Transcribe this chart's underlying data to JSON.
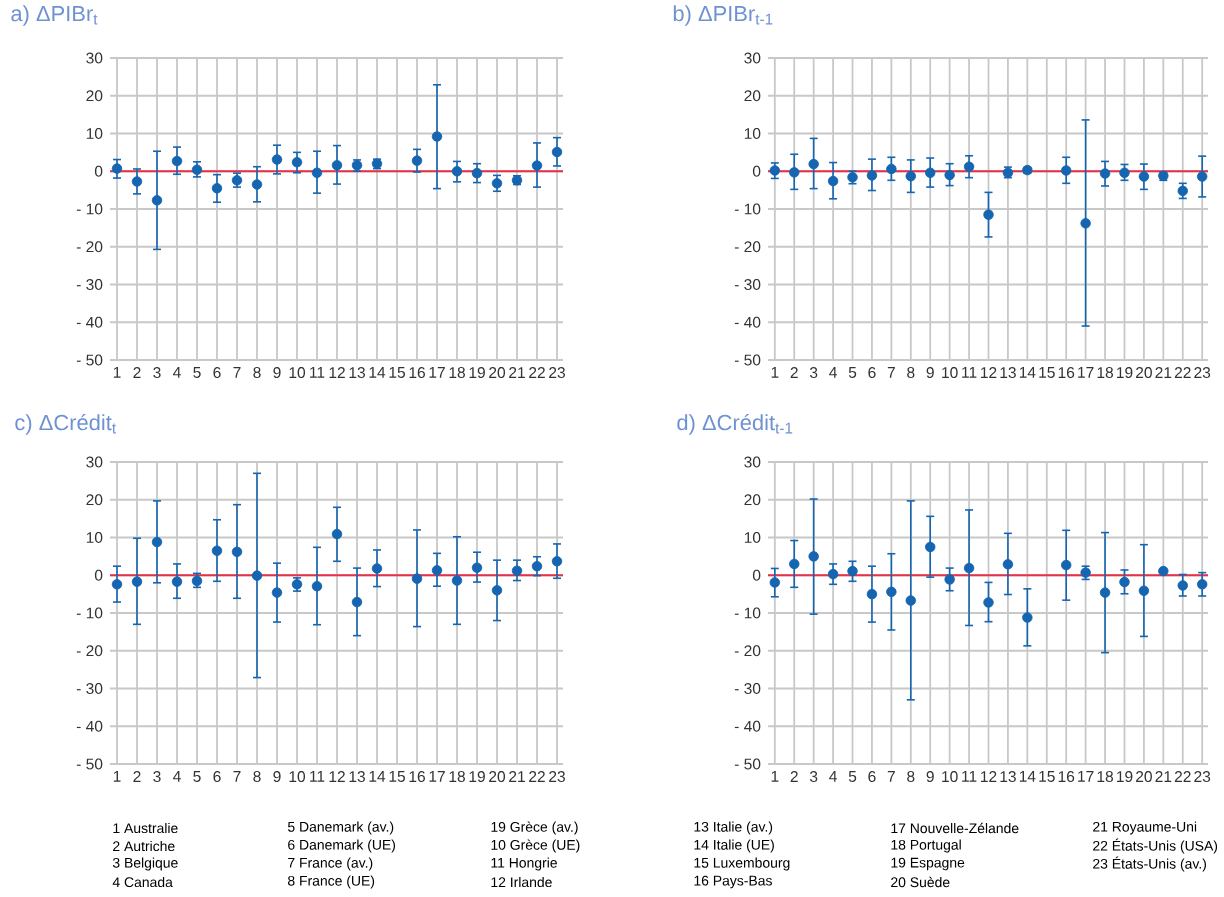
{
  "chart_data": [
    {
      "type": "scatter",
      "title": "a) ΔPIBr$_{t}$",
      "categories": [
        "1",
        "2",
        "3",
        "4",
        "5",
        "6",
        "7",
        "8",
        "9",
        "10",
        "11",
        "12",
        "13",
        "14",
        "15",
        "16",
        "17",
        "18",
        "19",
        "20",
        "21",
        "22",
        "23"
      ],
      "values": [
        0.7,
        -2.7,
        -7.7,
        2.7,
        0.4,
        -4.5,
        -2.4,
        -3.5,
        3.1,
        2.4,
        -0.4,
        1.6,
        1.6,
        2,
        null,
        2.8,
        9.2,
        0,
        -0.5,
        -3.2,
        -2.4,
        1.5,
        5.1
      ],
      "errors": [
        [
          -1.8,
          3.1
        ],
        [
          -6,
          0.6
        ],
        [
          -20.7,
          5.3
        ],
        [
          -0.8,
          6.4
        ],
        [
          -1.5,
          2.5
        ],
        [
          -8.2,
          -0.9
        ],
        [
          -4.2,
          -0.5
        ],
        [
          -8.1,
          1.2
        ],
        [
          -0.7,
          6.9
        ],
        [
          -0.4,
          5
        ],
        [
          -5.8,
          5.3
        ],
        [
          -3.4,
          6.8
        ],
        [
          0,
          3
        ],
        [
          0.7,
          3.2
        ],
        null,
        [
          -0.2,
          5.8
        ],
        [
          -4.6,
          22.9
        ],
        [
          -2.8,
          2.6
        ],
        [
          -3,
          2
        ],
        [
          -5.3,
          -1.1
        ],
        [
          -3.5,
          -1.2
        ],
        [
          -4.2,
          7.5
        ],
        [
          1.4,
          8.9
        ]
      ],
      "color": "#1565b0",
      "marker": "circle",
      "grid": true,
      "ylim": [
        -50,
        30
      ],
      "yticks": [
        {
          "value": -50,
          "label": "- 50"
        },
        {
          "value": -40,
          "label": "- 40"
        },
        {
          "value": -30,
          "label": "- 30"
        },
        {
          "value": -20,
          "label": "- 20"
        },
        {
          "value": -10,
          "label": "- 10"
        },
        0,
        10,
        20,
        30
      ],
      "ref_lines": [
        {
          "axis": "y",
          "value": 0,
          "color": "#e8304a"
        }
      ]
    },
    {
      "type": "scatter",
      "title": "b) ΔPIBr$_{t-1}$",
      "categories": [
        "1",
        "2",
        "3",
        "4",
        "5",
        "6",
        "7",
        "8",
        "9",
        "10",
        "11",
        "12",
        "13",
        "14",
        "15",
        "16",
        "17",
        "18",
        "19",
        "20",
        "21",
        "22",
        "23"
      ],
      "values": [
        0.2,
        -0.3,
        1.9,
        -2.6,
        -1.6,
        -1.1,
        0.6,
        -1.3,
        -0.4,
        -1,
        1.2,
        -11.5,
        -0.4,
        0.3,
        null,
        0.2,
        -13.8,
        -0.6,
        -0.4,
        -1.4,
        -1.2,
        -5.2,
        -1.4
      ],
      "errors": [
        [
          -1.9,
          2.2
        ],
        [
          -4.8,
          4.5
        ],
        [
          -4.6,
          8.7
        ],
        [
          -7.3,
          2.3
        ],
        [
          -3.3,
          0
        ],
        [
          -5.1,
          3.2
        ],
        [
          -2.4,
          3.7
        ],
        [
          -5.6,
          3
        ],
        [
          -4.2,
          3.5
        ],
        [
          -3.8,
          2
        ],
        [
          -1.7,
          4.1
        ],
        [
          -17.4,
          -5.6
        ],
        [
          -1.7,
          1.1
        ],
        [
          -0.5,
          1
        ],
        null,
        [
          -3.2,
          3.7
        ],
        [
          -41,
          13.6
        ],
        [
          -3.9,
          2.6
        ],
        [
          -2.4,
          1.8
        ],
        [
          -4.8,
          1.9
        ],
        [
          -2.4,
          -0.4
        ],
        [
          -7.2,
          -3.2
        ],
        [
          -6.8,
          4
        ]
      ],
      "color": "#1565b0",
      "marker": "circle",
      "grid": true,
      "ylim": [
        -50,
        30
      ],
      "yticks": [
        {
          "value": -50,
          "label": "- 50"
        },
        {
          "value": -40,
          "label": "- 40"
        },
        {
          "value": -30,
          "label": "- 30"
        },
        {
          "value": -20,
          "label": "- 20"
        },
        {
          "value": -10,
          "label": "- 10"
        },
        0,
        10,
        20,
        30
      ],
      "ref_lines": [
        {
          "axis": "y",
          "value": 0,
          "color": "#e8304a"
        }
      ]
    },
    {
      "type": "scatter",
      "title": "c) ΔCrédit$_{t}$",
      "categories": [
        "1",
        "2",
        "3",
        "4",
        "5",
        "6",
        "7",
        "8",
        "9",
        "10",
        "11",
        "12",
        "13",
        "14",
        "15",
        "16",
        "17",
        "18",
        "19",
        "20",
        "21",
        "22",
        "23"
      ],
      "values": [
        -2.4,
        -1.7,
        8.8,
        -1.7,
        -1.5,
        6.5,
        6.2,
        -0.1,
        -4.6,
        -2.4,
        -2.9,
        10.9,
        -7.1,
        1.8,
        null,
        -0.9,
        1.3,
        -1.4,
        2,
        -4,
        1.2,
        2.4,
        3.7
      ],
      "errors": [
        [
          -7.1,
          2.4
        ],
        [
          -13,
          9.8
        ],
        [
          -2,
          19.7
        ],
        [
          -6.1,
          3
        ],
        [
          -3.2,
          0.5
        ],
        [
          -1.6,
          14.7
        ],
        [
          -6.1,
          18.7
        ],
        [
          -27.1,
          27
        ],
        [
          -12.4,
          3.2
        ],
        [
          -4.2,
          -0.7
        ],
        [
          -13.1,
          7.4
        ],
        [
          3.7,
          18
        ],
        [
          -16,
          1.9
        ],
        [
          -3,
          6.7
        ],
        null,
        [
          -13.6,
          12
        ],
        [
          -2.9,
          5.8
        ],
        [
          -13,
          10.2
        ],
        [
          -1.8,
          6.1
        ],
        [
          -12,
          4
        ],
        [
          -1.4,
          4
        ],
        [
          -0.1,
          4.9
        ],
        [
          -0.8,
          8.3
        ]
      ],
      "color": "#1565b0",
      "marker": "circle",
      "grid": true,
      "ylim": [
        -50,
        30
      ],
      "yticks": [
        {
          "value": -50,
          "label": "- 50"
        },
        {
          "value": -40,
          "label": "- 40"
        },
        {
          "value": -30,
          "label": "- 30"
        },
        {
          "value": -20,
          "label": "- 20"
        },
        {
          "value": -10,
          "label": "- 10"
        },
        0,
        10,
        20,
        30
      ],
      "ref_lines": [
        {
          "axis": "y",
          "value": 0,
          "color": "#e8304a"
        }
      ],
      "annotations": [
        "1 Australie",
        "2 Autriche",
        "3 Belgique",
        "4 Canada",
        "5 Danemark (av.)",
        "6 Danemark (UE)",
        "7 France (av.)",
        "8 France (UE)",
        "19 Grèce (av.)",
        "10 Grèce (UE)",
        "11 Hongrie",
        "12 Irlande"
      ]
    },
    {
      "type": "scatter",
      "title": "d) ΔCrédit$_{t-1}$",
      "categories": [
        "1",
        "2",
        "3",
        "4",
        "5",
        "6",
        "7",
        "8",
        "9",
        "10",
        "11",
        "12",
        "13",
        "14",
        "15",
        "16",
        "17",
        "18",
        "19",
        "20",
        "21",
        "22",
        "23"
      ],
      "values": [
        -1.9,
        3,
        5,
        0.3,
        1.1,
        -5,
        -4.4,
        -6.7,
        7.5,
        -1.1,
        1.9,
        -7.2,
        2.9,
        -11.2,
        null,
        2.7,
        0.7,
        -4.6,
        -1.8,
        -4.1,
        1.1,
        -2.7,
        -2.4
      ],
      "errors": [
        [
          -5.7,
          1.8
        ],
        [
          -3.2,
          9.2
        ],
        [
          -10.3,
          20.2
        ],
        [
          -2.4,
          3
        ],
        [
          -1.6,
          3.7
        ],
        [
          -12.4,
          2.4
        ],
        [
          -14.5,
          5.7
        ],
        [
          -33,
          19.7
        ],
        [
          -0.5,
          15.6
        ],
        [
          -4.1,
          1.9
        ],
        [
          -13.3,
          17.3
        ],
        [
          -12.3,
          -1.9
        ],
        [
          -5.1,
          11.1
        ],
        [
          -18.7,
          -3.6
        ],
        null,
        [
          -6.6,
          11.9
        ],
        [
          -1.1,
          2.4
        ],
        [
          -20.5,
          11.3
        ],
        [
          -4.9,
          1.4
        ],
        [
          -16.2,
          8.1
        ],
        null,
        [
          -5.5,
          0.2
        ],
        [
          -5.5,
          0.7
        ]
      ],
      "color": "#1565b0",
      "marker": "circle",
      "grid": true,
      "ylim": [
        -50,
        30
      ],
      "yticks": [
        {
          "value": -50,
          "label": "- 50"
        },
        {
          "value": -40,
          "label": "- 40"
        },
        {
          "value": -30,
          "label": "- 30"
        },
        {
          "value": -20,
          "label": "- 20"
        },
        {
          "value": -10,
          "label": "- 10"
        },
        0,
        10,
        20,
        30
      ],
      "ref_lines": [
        {
          "axis": "y",
          "value": 0,
          "color": "#e8304a"
        }
      ],
      "annotations": [
        "13 Italie (av.)",
        "14 Italie (UE)",
        "15 Luxembourg",
        "16 Pays-Bas",
        "17 Nouvelle-Zélande",
        "18 Portugal",
        "19 Espagne",
        "20 Suède",
        "21 Royaume-Uni",
        "22 États-Unis (USA)",
        "23 États-Unis (av.)"
      ]
    }
  ]
}
